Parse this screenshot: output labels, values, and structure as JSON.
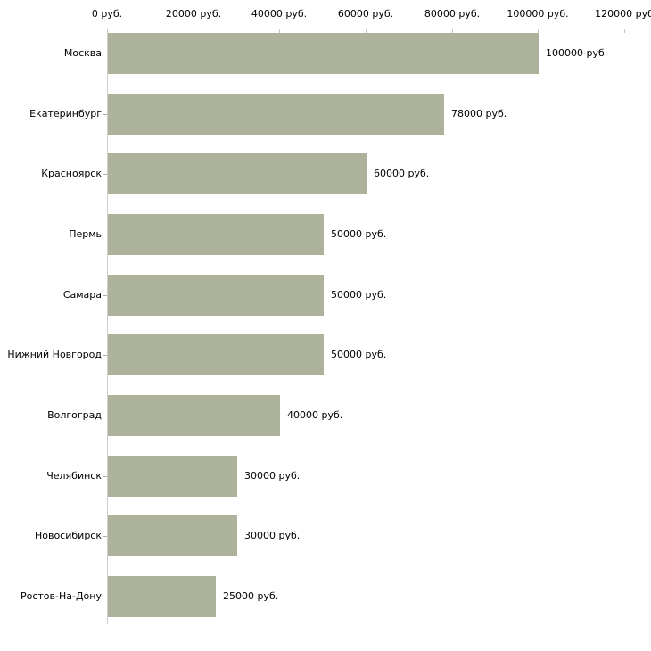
{
  "chart_data": {
    "type": "bar",
    "orientation": "horizontal",
    "title": "",
    "xlabel": "",
    "ylabel": "",
    "unit": "руб.",
    "xlim": [
      0,
      120000
    ],
    "grid": false,
    "legend": false,
    "categories": [
      "Москва",
      "Екатеринбург",
      "Красноярск",
      "Пермь",
      "Самара",
      "Нижний Новгород",
      "Волгоград",
      "Челябинск",
      "Новосибирск",
      "Ростов-На-Дону"
    ],
    "values": [
      100000,
      78000,
      60000,
      50000,
      50000,
      50000,
      40000,
      30000,
      30000,
      25000
    ],
    "value_labels": [
      "100000 руб.",
      "78000 руб.",
      "60000 руб.",
      "50000 руб.",
      "50000 руб.",
      "50000 руб.",
      "40000 руб.",
      "30000 руб.",
      "30000 руб.",
      "25000 руб."
    ],
    "x_ticks": [
      0,
      20000,
      40000,
      60000,
      80000,
      100000,
      120000
    ],
    "x_tick_labels": [
      "0 руб.",
      "20000 руб.",
      "40000 руб.",
      "60000 руб.",
      "80000 руб.",
      "100000 руб.",
      "120000 руб"
    ],
    "colors": {
      "bar": "#adb29b",
      "axis": "#cccccc",
      "top_tick": "#c6c9b5",
      "row_tick": "#aaaaaa",
      "text": "#000000",
      "background": "#ffffff"
    }
  }
}
